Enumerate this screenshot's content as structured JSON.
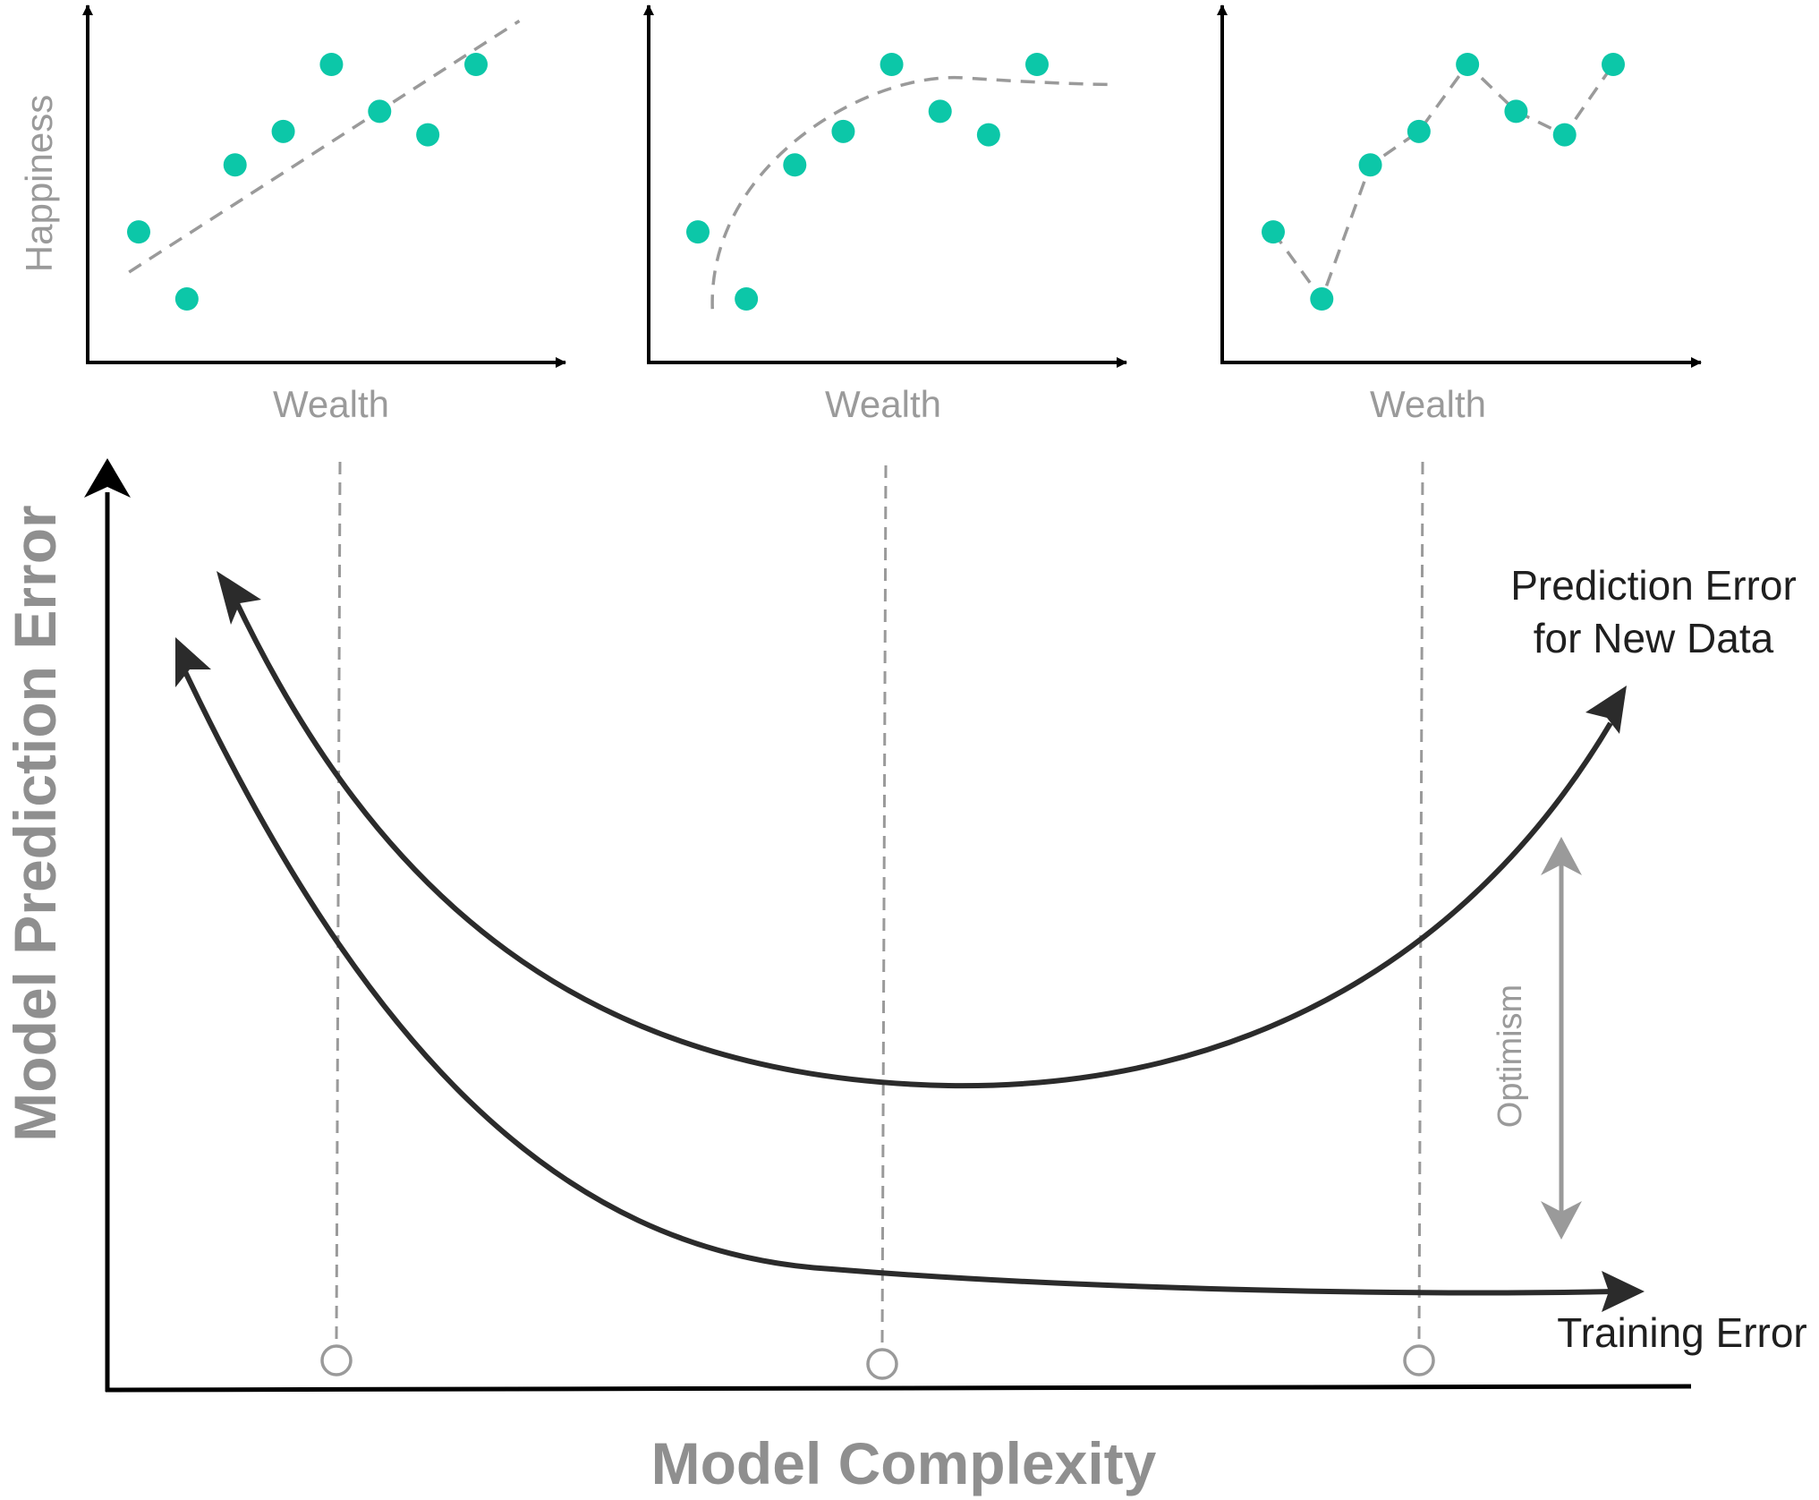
{
  "colors": {
    "axis": "#000000",
    "curve": "#2b2b2b",
    "point": "#0cc7a8",
    "dashed": "#9a9a9a",
    "label_gray": "#9a9a9a"
  },
  "panels": [
    {
      "xlabel": "Wealth",
      "ylabel": "Happiness",
      "fit": "linear",
      "points": [
        [
          1,
          3
        ],
        [
          2,
          1
        ],
        [
          3,
          5
        ],
        [
          4,
          6
        ],
        [
          5,
          8
        ],
        [
          6,
          6.6
        ],
        [
          7,
          5.9
        ],
        [
          8,
          8
        ]
      ]
    },
    {
      "xlabel": "Wealth",
      "ylabel": "",
      "fit": "smooth",
      "points": [
        [
          1,
          3
        ],
        [
          2,
          1
        ],
        [
          3,
          5
        ],
        [
          4,
          6
        ],
        [
          5,
          8
        ],
        [
          6,
          6.6
        ],
        [
          7,
          5.9
        ],
        [
          8,
          8
        ]
      ]
    },
    {
      "xlabel": "Wealth",
      "ylabel": "",
      "fit": "interpolating",
      "points": [
        [
          1,
          3
        ],
        [
          2,
          1
        ],
        [
          3,
          5
        ],
        [
          4,
          6
        ],
        [
          5,
          8
        ],
        [
          6,
          6.6
        ],
        [
          7,
          5.9
        ],
        [
          8,
          8
        ]
      ]
    }
  ],
  "main": {
    "xlabel": "Model Complexity",
    "ylabel": "Model Prediction Error",
    "prediction_label_line1": "Prediction Error",
    "prediction_label_line2": "for New Data",
    "training_label": "Training Error",
    "optimism_label": "Optimism"
  }
}
